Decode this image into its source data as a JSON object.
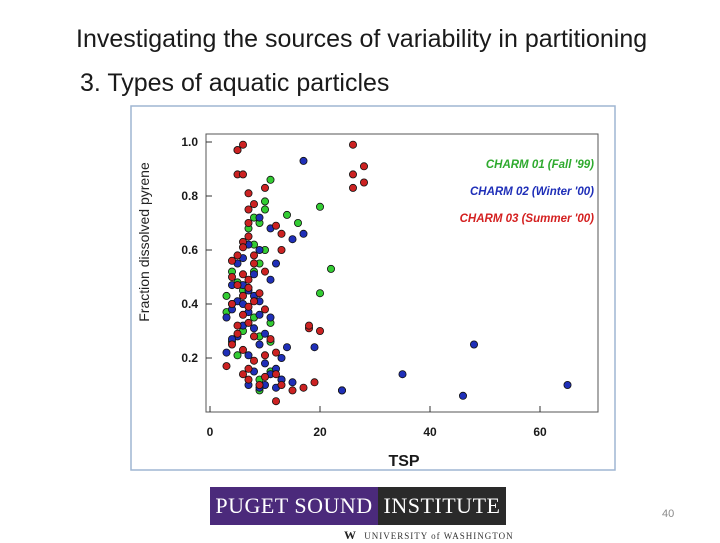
{
  "slide": {
    "title": "Investigating the sources of variability in partitioning",
    "subtitle": "3.  Types of aquatic particles",
    "page_number": "40"
  },
  "logo": {
    "left_text": "PUGET SOUND",
    "right_text": "INSTITUTE",
    "university_mark": "W",
    "university_text": "UNIVERSITY of WASHINGTON"
  },
  "colors": {
    "green": "#33cc33",
    "blue": "#1f2fb8",
    "red": "#cc2222",
    "legend_green": "#2eaa2e",
    "legend_blue": "#1f2fb8",
    "legend_red": "#d42020",
    "axis": "#333333",
    "frame": "#9fb6d2"
  },
  "chart_data": {
    "type": "scatter",
    "title": "",
    "xlabel": "TSP",
    "ylabel": "Fraction dissolved pyrene",
    "xlim": [
      0,
      70
    ],
    "ylim": [
      0,
      1.0
    ],
    "xticks": [
      0,
      20,
      40,
      60
    ],
    "yticks": [
      0.2,
      0.4,
      0.6,
      0.8,
      1.0
    ],
    "ytick_labels": [
      "0.2",
      "0.4",
      "0.6",
      "0.8",
      "1.0"
    ],
    "grid": false,
    "legend_position": "top-right",
    "series": [
      {
        "name": "CHARM 01 (Fall '99)",
        "color": "green",
        "points": [
          [
            5,
            0.97
          ],
          [
            11,
            0.86
          ],
          [
            10,
            0.78
          ],
          [
            10,
            0.75
          ],
          [
            8,
            0.72
          ],
          [
            14,
            0.73
          ],
          [
            16,
            0.7
          ],
          [
            20,
            0.76
          ],
          [
            9,
            0.7
          ],
          [
            7,
            0.68
          ],
          [
            8,
            0.62
          ],
          [
            10,
            0.6
          ],
          [
            9,
            0.55
          ],
          [
            8,
            0.52
          ],
          [
            4,
            0.52
          ],
          [
            22,
            0.53
          ],
          [
            5,
            0.48
          ],
          [
            6,
            0.45
          ],
          [
            3,
            0.43
          ],
          [
            4,
            0.4
          ],
          [
            20,
            0.44
          ],
          [
            3,
            0.37
          ],
          [
            8,
            0.35
          ],
          [
            11,
            0.33
          ],
          [
            6,
            0.3
          ],
          [
            9,
            0.28
          ],
          [
            4,
            0.26
          ],
          [
            11,
            0.26
          ],
          [
            5,
            0.21
          ],
          [
            11,
            0.15
          ],
          [
            13,
            0.12
          ],
          [
            9,
            0.12
          ],
          [
            9,
            0.08
          ],
          [
            24,
            0.08
          ]
        ]
      },
      {
        "name": "CHARM 02 (Winter '00)",
        "color": "blue",
        "points": [
          [
            17,
            0.93
          ],
          [
            9,
            0.72
          ],
          [
            11,
            0.68
          ],
          [
            17,
            0.66
          ],
          [
            15,
            0.64
          ],
          [
            7,
            0.62
          ],
          [
            9,
            0.6
          ],
          [
            6,
            0.57
          ],
          [
            12,
            0.55
          ],
          [
            5,
            0.55
          ],
          [
            8,
            0.51
          ],
          [
            11,
            0.49
          ],
          [
            6,
            0.47
          ],
          [
            4,
            0.47
          ],
          [
            7,
            0.45
          ],
          [
            8,
            0.43
          ],
          [
            9,
            0.41
          ],
          [
            5,
            0.41
          ],
          [
            6,
            0.4
          ],
          [
            4,
            0.38
          ],
          [
            7,
            0.37
          ],
          [
            9,
            0.36
          ],
          [
            11,
            0.35
          ],
          [
            3,
            0.35
          ],
          [
            6,
            0.32
          ],
          [
            8,
            0.31
          ],
          [
            10,
            0.29
          ],
          [
            5,
            0.28
          ],
          [
            4,
            0.27
          ],
          [
            9,
            0.25
          ],
          [
            19,
            0.24
          ],
          [
            14,
            0.24
          ],
          [
            3,
            0.22
          ],
          [
            7,
            0.21
          ],
          [
            13,
            0.2
          ],
          [
            10,
            0.18
          ],
          [
            12,
            0.16
          ],
          [
            8,
            0.15
          ],
          [
            11,
            0.14
          ],
          [
            13,
            0.12
          ],
          [
            7,
            0.1
          ],
          [
            10,
            0.1
          ],
          [
            12,
            0.09
          ],
          [
            24,
            0.08
          ],
          [
            35,
            0.14
          ],
          [
            48,
            0.25
          ],
          [
            46,
            0.06
          ],
          [
            65,
            0.1
          ],
          [
            9,
            0.09
          ],
          [
            15,
            0.11
          ]
        ]
      },
      {
        "name": "CHARM 03 (Summer '00)",
        "color": "red",
        "points": [
          [
            6,
            0.99
          ],
          [
            5,
            0.88
          ],
          [
            6,
            0.88
          ],
          [
            5,
            0.97
          ],
          [
            26,
            0.99
          ],
          [
            28,
            0.91
          ],
          [
            26,
            0.88
          ],
          [
            28,
            0.85
          ],
          [
            26,
            0.83
          ],
          [
            10,
            0.83
          ],
          [
            7,
            0.81
          ],
          [
            8,
            0.77
          ],
          [
            7,
            0.75
          ],
          [
            7,
            0.7
          ],
          [
            12,
            0.69
          ],
          [
            13,
            0.66
          ],
          [
            7,
            0.65
          ],
          [
            6,
            0.63
          ],
          [
            6,
            0.61
          ],
          [
            13,
            0.6
          ],
          [
            8,
            0.58
          ],
          [
            5,
            0.58
          ],
          [
            4,
            0.56
          ],
          [
            8,
            0.55
          ],
          [
            10,
            0.52
          ],
          [
            6,
            0.51
          ],
          [
            4,
            0.5
          ],
          [
            7,
            0.49
          ],
          [
            5,
            0.47
          ],
          [
            7,
            0.46
          ],
          [
            9,
            0.44
          ],
          [
            6,
            0.43
          ],
          [
            8,
            0.41
          ],
          [
            4,
            0.4
          ],
          [
            7,
            0.39
          ],
          [
            10,
            0.38
          ],
          [
            6,
            0.36
          ],
          [
            18,
            0.31
          ],
          [
            20,
            0.3
          ],
          [
            5,
            0.32
          ],
          [
            7,
            0.33
          ],
          [
            5,
            0.29
          ],
          [
            11,
            0.27
          ],
          [
            8,
            0.28
          ],
          [
            18,
            0.32
          ],
          [
            12,
            0.22
          ],
          [
            6,
            0.23
          ],
          [
            4,
            0.25
          ],
          [
            10,
            0.21
          ],
          [
            8,
            0.19
          ],
          [
            7,
            0.16
          ],
          [
            10,
            0.13
          ],
          [
            12,
            0.14
          ],
          [
            7,
            0.12
          ],
          [
            13,
            0.1
          ],
          [
            17,
            0.09
          ],
          [
            19,
            0.11
          ],
          [
            12,
            0.04
          ],
          [
            15,
            0.08
          ],
          [
            9,
            0.1
          ],
          [
            6,
            0.14
          ],
          [
            3,
            0.17
          ]
        ]
      }
    ]
  }
}
